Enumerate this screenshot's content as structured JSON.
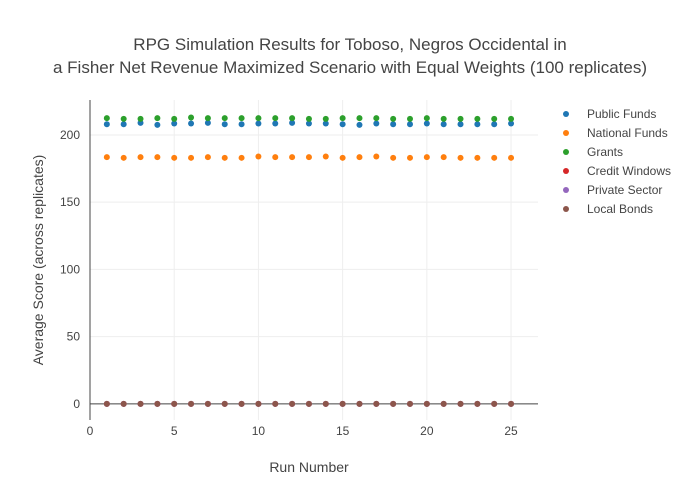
{
  "chart_data": {
    "type": "scatter",
    "title_lines": [
      "RPG Simulation Results for Toboso, Negros Occidental in",
      "a Fisher Net Revenue Maximized Scenario with Equal Weights (100 replicates)"
    ],
    "xlabel": "Run Number",
    "ylabel": "Average Score (across replicates)",
    "xlim": [
      0,
      26.6
    ],
    "ylim": [
      -12,
      226
    ],
    "x_ticks": [
      0,
      5,
      10,
      15,
      20,
      25
    ],
    "y_ticks": [
      0,
      50,
      100,
      150,
      200
    ],
    "grid": true,
    "legend_position": "top-right",
    "x": [
      1,
      2,
      3,
      4,
      5,
      6,
      7,
      8,
      9,
      10,
      11,
      12,
      13,
      14,
      15,
      16,
      17,
      18,
      19,
      20,
      21,
      22,
      23,
      24,
      25
    ],
    "series": [
      {
        "name": "Public Funds",
        "color": "#1f77b4",
        "values": [
          208,
          208,
          209,
          207.5,
          208.5,
          208.5,
          209,
          208,
          208,
          208.5,
          208.5,
          209,
          208.5,
          208.5,
          208,
          207.5,
          208.5,
          208,
          208,
          208.5,
          208,
          208,
          208,
          208,
          208.5
        ]
      },
      {
        "name": "National Funds",
        "color": "#ff7f0e",
        "values": [
          183.5,
          183,
          183.5,
          183.5,
          183,
          183,
          183.5,
          183,
          183,
          184,
          183.5,
          183.5,
          183.5,
          184,
          183,
          183.5,
          184,
          183,
          183,
          183.5,
          183.5,
          183,
          183,
          183,
          183
        ]
      },
      {
        "name": "Grants",
        "color": "#2ca02c",
        "values": [
          212.5,
          212,
          212,
          212.5,
          212,
          213,
          212.5,
          212.5,
          212.5,
          212.5,
          212.5,
          212.5,
          212,
          212,
          212.5,
          212.5,
          212.5,
          212,
          212,
          212.5,
          212,
          212,
          212,
          212,
          212
        ]
      },
      {
        "name": "Credit Windows",
        "color": "#d62728",
        "values": [
          0,
          0,
          0,
          0,
          0,
          0,
          0,
          0,
          0,
          0,
          0,
          0,
          0,
          0,
          0,
          0,
          0,
          0,
          0,
          0,
          0,
          0,
          0,
          0,
          0
        ]
      },
      {
        "name": "Private Sector",
        "color": "#9467bd",
        "values": [
          0,
          0,
          0,
          0,
          0,
          0,
          0,
          0,
          0,
          0,
          0,
          0,
          0,
          0,
          0,
          0,
          0,
          0,
          0,
          0,
          0,
          0,
          0,
          0,
          0
        ]
      },
      {
        "name": "Local Bonds",
        "color": "#8c564b",
        "values": [
          0,
          0,
          0,
          0,
          0,
          0,
          0,
          0,
          0,
          0,
          0,
          0,
          0,
          0,
          0,
          0,
          0,
          0,
          0,
          0,
          0,
          0,
          0,
          0,
          0
        ]
      }
    ]
  }
}
